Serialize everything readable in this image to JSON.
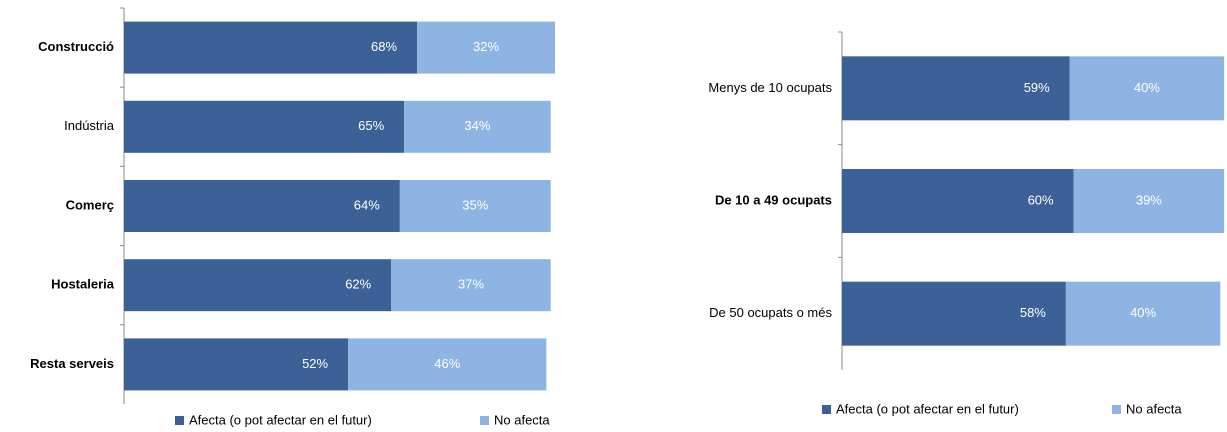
{
  "chart_data": [
    {
      "type": "stacked-bar",
      "orientation": "horizontal",
      "categories": [
        "Construcció",
        "Indústria",
        "Comerç",
        "Hostaleria",
        "Resta serveis"
      ],
      "xlim": [
        0,
        100
      ],
      "series": [
        {
          "name": "Afecta (o pot afectar en el futur)",
          "color": "#3b6196",
          "values": [
            68,
            65,
            64,
            62,
            52
          ],
          "value_labels": [
            "68%",
            "65%",
            "64%",
            "62%",
            "52%"
          ]
        },
        {
          "name": "No afecta",
          "color": "#8eb4e3",
          "values": [
            32,
            34,
            35,
            37,
            46
          ],
          "value_labels": [
            "32%",
            "34%",
            "35%",
            "37%",
            "46%"
          ]
        }
      ]
    },
    {
      "type": "stacked-bar",
      "orientation": "horizontal",
      "categories": [
        "Menys de 10 ocupats",
        "De 10 a 49 ocupats",
        "De 50 ocupats o més"
      ],
      "xlim": [
        0,
        100
      ],
      "series": [
        {
          "name": "Afecta (o pot afectar en el futur)",
          "color": "#3b6196",
          "values": [
            59,
            60,
            58
          ],
          "value_labels": [
            "59%",
            "60%",
            "58%"
          ]
        },
        {
          "name": "No afecta",
          "color": "#8eb4e3",
          "values": [
            40,
            39,
            40
          ],
          "value_labels": [
            "40%",
            "39%",
            "40%"
          ]
        }
      ]
    }
  ]
}
